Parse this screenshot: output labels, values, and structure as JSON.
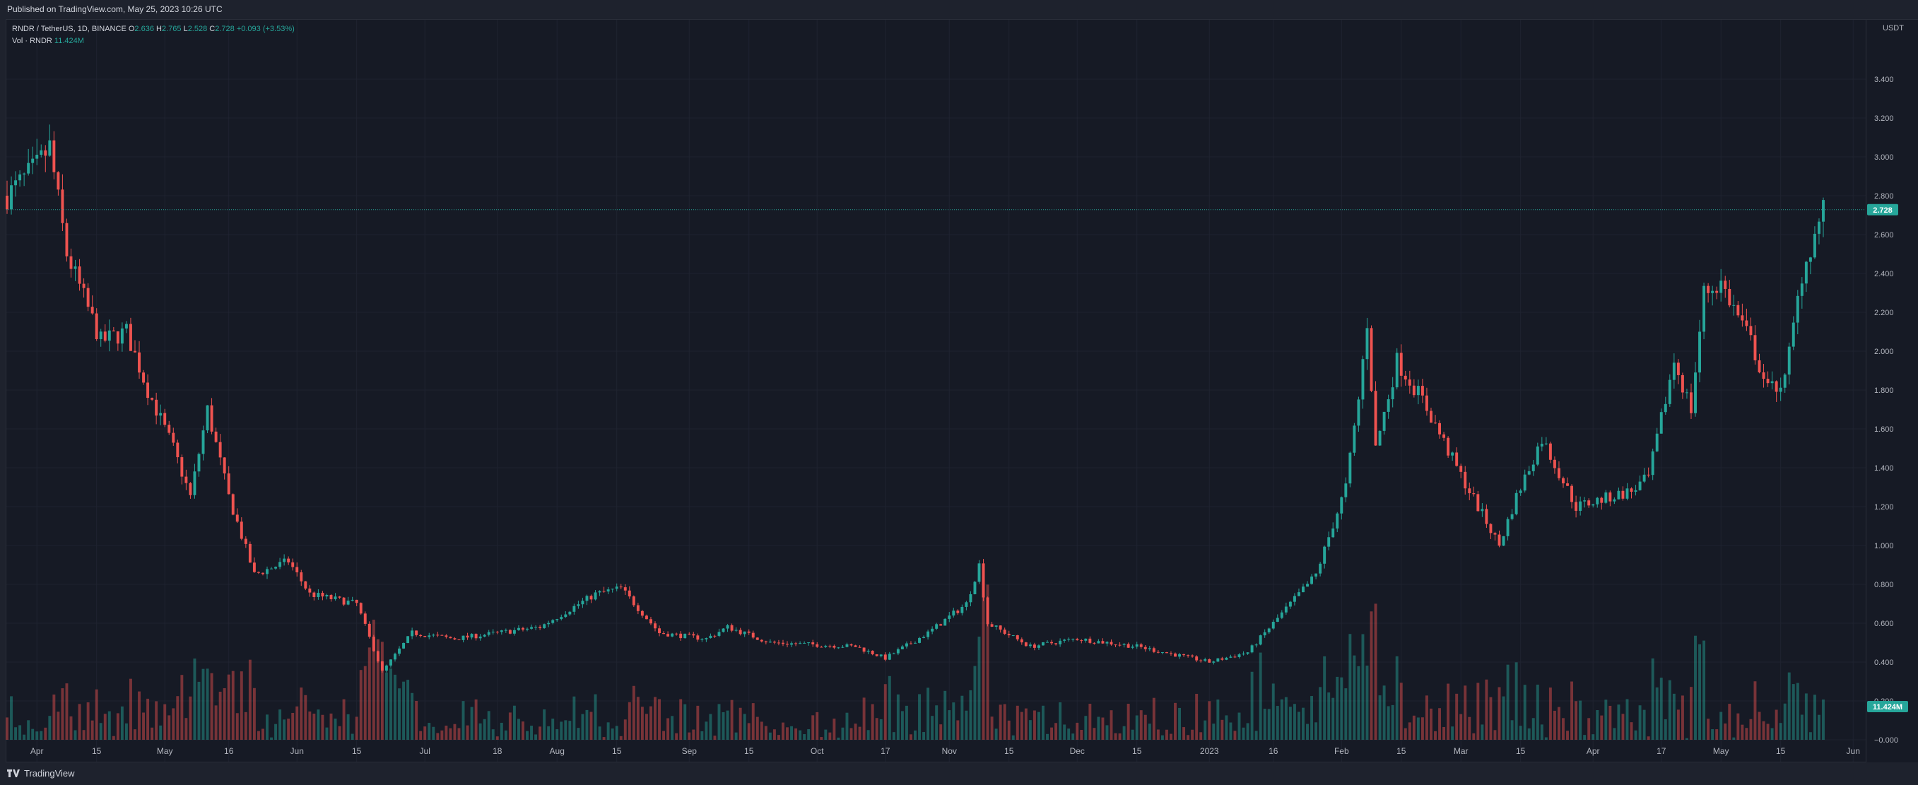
{
  "header": {
    "published": "Published on TradingView.com, May 25, 2023 10:26 UTC"
  },
  "legend": {
    "symbol": "RNDR / TetherUS, 1D, BINANCE",
    "o_label": "O",
    "o_value": "2.636",
    "h_label": "H",
    "h_value": "2.765",
    "l_label": "L",
    "l_value": "2.528",
    "c_label": "C",
    "c_value": "2.728",
    "change": "+0.093 (+3.53%)",
    "vol_label": "Vol · RNDR",
    "vol_value": "11.424M"
  },
  "axis": {
    "currency": "USDT",
    "price_ticks": [
      "3.400",
      "3.200",
      "3.000",
      "2.800",
      "2.600",
      "2.400",
      "2.200",
      "2.000",
      "1.800",
      "1.600",
      "1.400",
      "1.200",
      "1.000",
      "0.800",
      "0.600",
      "0.400",
      "0.200",
      "−0.000"
    ],
    "last_price": "2.728",
    "last_volume": "11.424M",
    "date_ticks": [
      "Apr",
      "15",
      "May",
      "16",
      "Jun",
      "15",
      "Jul",
      "18",
      "Aug",
      "15",
      "Sep",
      "15",
      "Oct",
      "17",
      "Nov",
      "15",
      "Dec",
      "15",
      "2023",
      "16",
      "Feb",
      "15",
      "Mar",
      "15",
      "Apr",
      "17",
      "May",
      "15",
      "Jun"
    ]
  },
  "footer": {
    "brand": "TradingView",
    "logo_icon": "tradingview-logo-icon"
  },
  "colors": {
    "up": "#26a69a",
    "down": "#ef5350",
    "background": "#161a25",
    "grid": "#1f2330"
  },
  "chart_data": {
    "type": "candlestick",
    "symbol": "RNDR / TetherUS",
    "interval": "1D",
    "exchange": "BINANCE",
    "ylim": [
      0,
      3.5
    ],
    "grid": true,
    "x_start": "2022-03-25",
    "x_end": "2023-05-25",
    "close_anchors": [
      [
        "2022-03-25",
        2.8
      ],
      [
        "2022-04-01",
        2.95
      ],
      [
        "2022-04-04",
        3.05
      ],
      [
        "2022-04-08",
        2.5
      ],
      [
        "2022-04-16",
        2.05
      ],
      [
        "2022-04-22",
        2.1
      ],
      [
        "2022-04-27",
        1.8
      ],
      [
        "2022-05-03",
        1.5
      ],
      [
        "2022-05-07",
        1.25
      ],
      [
        "2022-05-11",
        1.7
      ],
      [
        "2022-05-16",
        1.25
      ],
      [
        "2022-05-22",
        0.85
      ],
      [
        "2022-05-30",
        0.92
      ],
      [
        "2022-06-04",
        0.75
      ],
      [
        "2022-06-15",
        0.7
      ],
      [
        "2022-06-21",
        0.35
      ],
      [
        "2022-06-28",
        0.55
      ],
      [
        "2022-07-08",
        0.52
      ],
      [
        "2022-07-18",
        0.55
      ],
      [
        "2022-07-28",
        0.58
      ],
      [
        "2022-08-10",
        0.75
      ],
      [
        "2022-08-16",
        0.78
      ],
      [
        "2022-08-25",
        0.55
      ],
      [
        "2022-09-05",
        0.52
      ],
      [
        "2022-09-10",
        0.58
      ],
      [
        "2022-09-20",
        0.5
      ],
      [
        "2022-10-10",
        0.48
      ],
      [
        "2022-10-17",
        0.42
      ],
      [
        "2022-10-27",
        0.55
      ],
      [
        "2022-11-05",
        0.7
      ],
      [
        "2022-11-08",
        0.9
      ],
      [
        "2022-11-10",
        0.6
      ],
      [
        "2022-11-20",
        0.48
      ],
      [
        "2022-12-01",
        0.52
      ],
      [
        "2022-12-15",
        0.48
      ],
      [
        "2023-01-01",
        0.4
      ],
      [
        "2023-01-10",
        0.45
      ],
      [
        "2023-01-20",
        0.7
      ],
      [
        "2023-01-26",
        0.85
      ],
      [
        "2023-02-02",
        1.3
      ],
      [
        "2023-02-05",
        1.75
      ],
      [
        "2023-02-07",
        2.15
      ],
      [
        "2023-02-09",
        1.5
      ],
      [
        "2023-02-14",
        1.95
      ],
      [
        "2023-02-20",
        1.75
      ],
      [
        "2023-02-28",
        1.4
      ],
      [
        "2023-03-10",
        1.0
      ],
      [
        "2023-03-14",
        1.25
      ],
      [
        "2023-03-20",
        1.55
      ],
      [
        "2023-03-28",
        1.2
      ],
      [
        "2023-04-10",
        1.28
      ],
      [
        "2023-04-14",
        1.35
      ],
      [
        "2023-04-20",
        1.95
      ],
      [
        "2023-04-24",
        1.7
      ],
      [
        "2023-04-27",
        2.3
      ],
      [
        "2023-05-01",
        2.35
      ],
      [
        "2023-05-08",
        2.05
      ],
      [
        "2023-05-12",
        1.8
      ],
      [
        "2023-05-16",
        1.85
      ],
      [
        "2023-05-20",
        2.4
      ],
      [
        "2023-05-25",
        2.73
      ]
    ],
    "volume": {
      "unit": "RNDR",
      "last": "11.424M"
    }
  }
}
